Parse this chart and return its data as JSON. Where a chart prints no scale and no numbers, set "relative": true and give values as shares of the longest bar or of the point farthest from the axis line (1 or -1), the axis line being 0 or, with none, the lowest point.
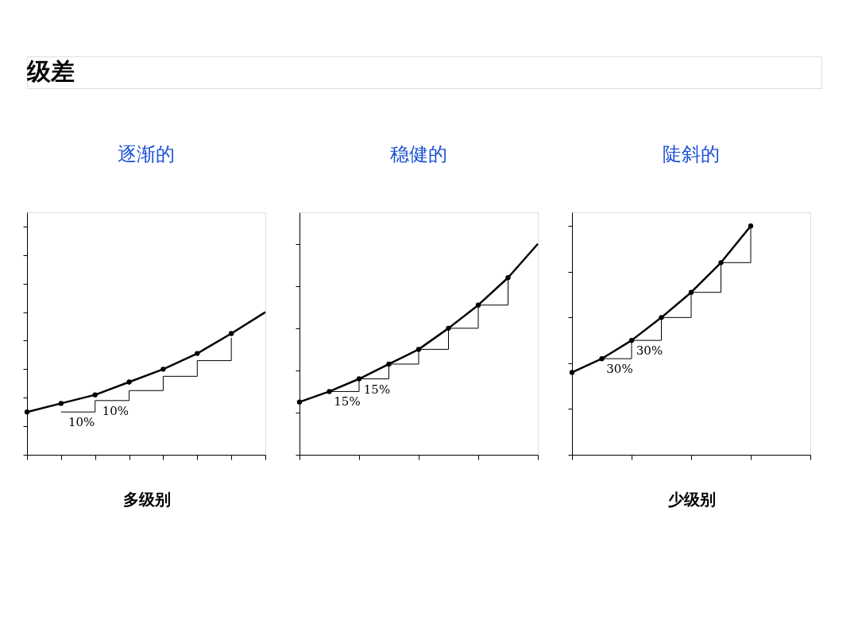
{
  "chart_data": [
    {
      "type": "other",
      "title": "级差"
    },
    {
      "type": "line",
      "title": "逐渐的",
      "xlabel": "多级别",
      "relative": true,
      "tick_labels": false,
      "categories": [
        null,
        null,
        null,
        null,
        null,
        null,
        null,
        null
      ],
      "series": [
        {
          "type": "line",
          "color": "#000000",
          "marker": "circle",
          "values": [
            0.3,
            0.36,
            0.42,
            0.51,
            0.6,
            0.71,
            0.85,
            null
          ]
        },
        {
          "type": "line",
          "color": "#000000",
          "marker": "none",
          "values": [
            null,
            null,
            null,
            null,
            null,
            null,
            0.85,
            1
          ]
        },
        {
          "type": "step",
          "color": "#000000",
          "values": [
            null,
            0.3,
            0.38,
            0.45,
            0.55,
            0.66,
            0.82,
            null
          ]
        }
      ],
      "annotations": [
        "10%",
        "10%"
      ]
    },
    {
      "type": "line",
      "title": "稳健的",
      "relative": true,
      "tick_labels": false,
      "categories": [
        null,
        null,
        null,
        null,
        null,
        null,
        null,
        null,
        null
      ],
      "series": [
        {
          "type": "line",
          "color": "#000000",
          "marker": "circle",
          "values": [
            0.25,
            0.3,
            0.36,
            0.43,
            0.5,
            0.6,
            0.71,
            0.84,
            null
          ]
        },
        {
          "type": "line",
          "color": "#000000",
          "marker": "none",
          "values": [
            null,
            null,
            null,
            null,
            null,
            null,
            null,
            0.84,
            1
          ]
        },
        {
          "type": "step",
          "color": "#000000",
          "values": [
            null,
            0.3,
            0.36,
            0.43,
            0.5,
            0.6,
            0.71,
            0.84,
            null
          ]
        }
      ],
      "annotations": [
        "15%",
        "15%"
      ]
    },
    {
      "type": "line",
      "title": "陡斜的",
      "xlabel": "少级别",
      "relative": true,
      "tick_labels": false,
      "categories": [
        null,
        null,
        null,
        null,
        null,
        null,
        null,
        null,
        null
      ],
      "series": [
        {
          "type": "line",
          "color": "#000000",
          "marker": "circle",
          "values": [
            0.36,
            0.42,
            0.5,
            0.6,
            0.71,
            0.84,
            1,
            null,
            null
          ]
        },
        {
          "type": "step",
          "color": "#000000",
          "values": [
            null,
            0.42,
            0.5,
            0.6,
            0.71,
            0.84,
            1,
            null,
            null
          ]
        }
      ],
      "annotations": [
        "30%",
        "30%"
      ]
    }
  ]
}
